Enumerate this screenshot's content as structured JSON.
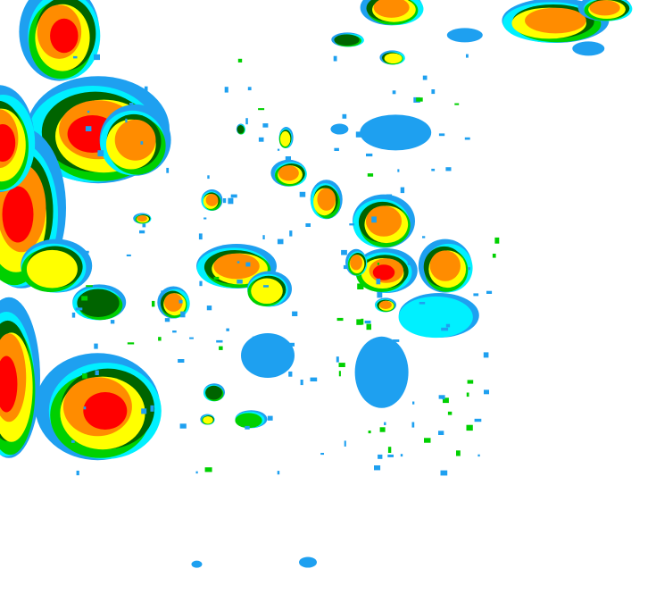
{
  "map": {
    "kind": "weather radar reflectivity",
    "background": "#ffffff",
    "intensity_colors": [
      "#1ea0f0",
      "#00f0ff",
      "#00d000",
      "#006400",
      "#ffff00",
      "#ff8c00",
      "#ff0000"
    ]
  }
}
